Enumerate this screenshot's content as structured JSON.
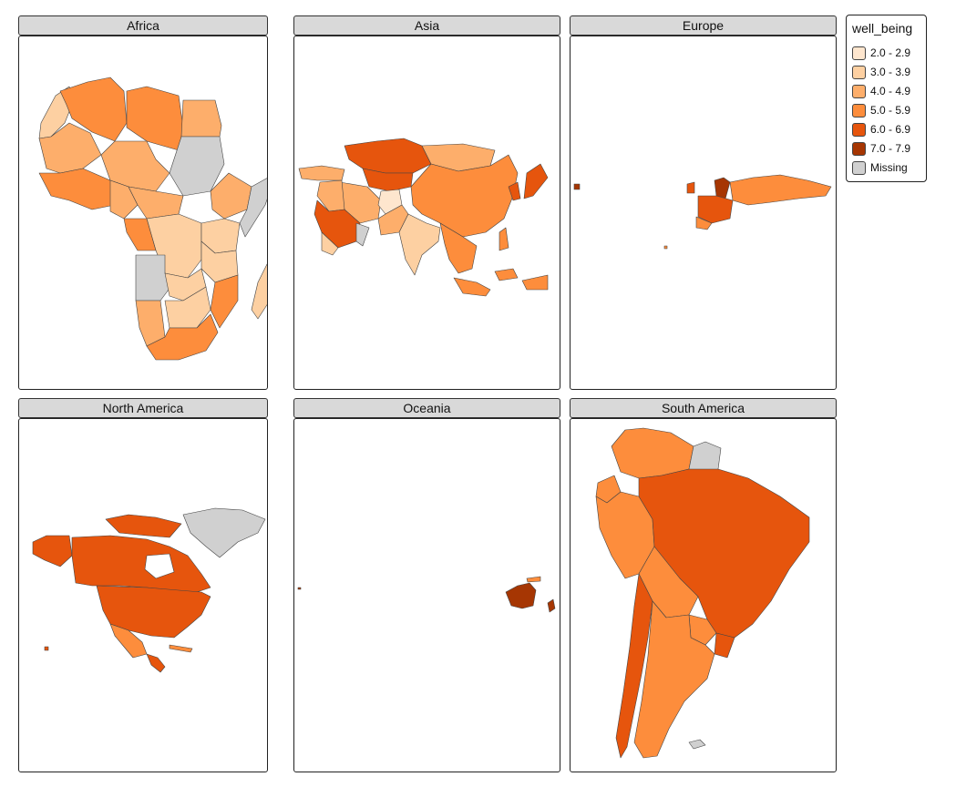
{
  "colors": {
    "c1": "#fee6ce",
    "c2": "#fdd0a2",
    "c3": "#fdae6b",
    "c4": "#fd8d3c",
    "c5": "#e6550d",
    "c6": "#a63603",
    "missing": "#d0d0d0"
  },
  "legend": {
    "title": "well_being",
    "items": [
      {
        "label": "2.0 - 2.9",
        "color": "#fee6ce"
      },
      {
        "label": "3.0 - 3.9",
        "color": "#fdd0a2"
      },
      {
        "label": "4.0 - 4.9",
        "color": "#fdae6b"
      },
      {
        "label": "5.0 - 5.9",
        "color": "#fd8d3c"
      },
      {
        "label": "6.0 - 6.9",
        "color": "#e6550d"
      },
      {
        "label": "7.0 - 7.9",
        "color": "#a63603"
      },
      {
        "label": "Missing",
        "color": "#d0d0d0"
      }
    ]
  },
  "panels": [
    {
      "label": "Africa"
    },
    {
      "label": "Asia"
    },
    {
      "label": "Europe"
    },
    {
      "label": "North America"
    },
    {
      "label": "Oceania"
    },
    {
      "label": "South America"
    }
  ]
}
